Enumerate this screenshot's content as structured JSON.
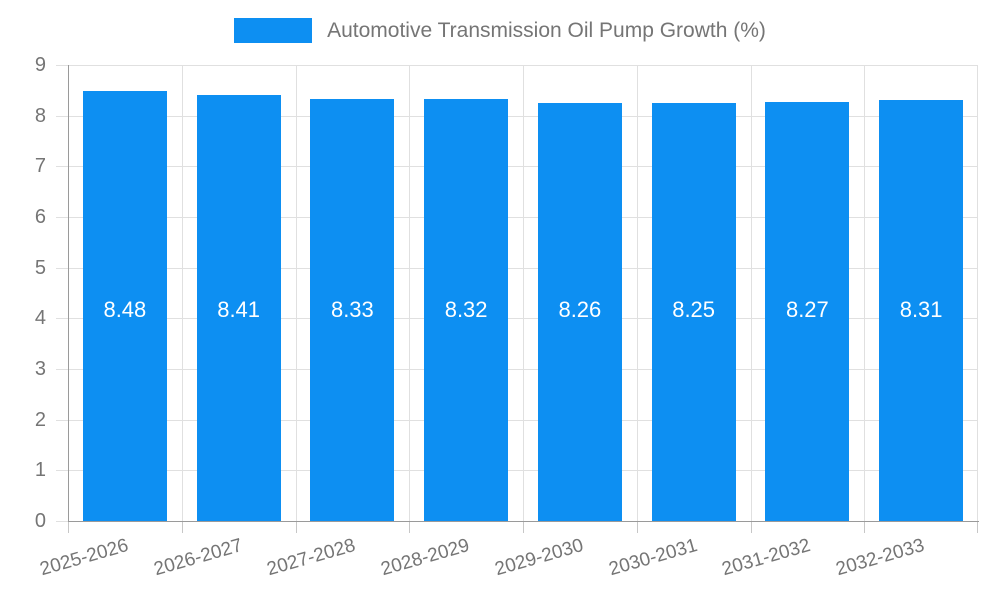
{
  "chart_data": {
    "type": "bar",
    "title": "Automotive Transmission Oil Pump Growth (%)",
    "legend": [
      "Automotive Transmission Oil Pump Growth (%)"
    ],
    "legend_position": "top",
    "categories": [
      "2025-2026",
      "2026-2027",
      "2027-2028",
      "2028-2029",
      "2029-2030",
      "2030-2031",
      "2031-2032",
      "2032-2033"
    ],
    "values": [
      8.48,
      8.41,
      8.33,
      8.32,
      8.26,
      8.25,
      8.27,
      8.31
    ],
    "value_labels": [
      "8.48",
      "8.41",
      "8.33",
      "8.32",
      "8.26",
      "8.25",
      "8.27",
      "8.31"
    ],
    "xlabel": "",
    "ylabel": "",
    "ylim": [
      0,
      9
    ],
    "y_ticks": [
      0,
      1,
      2,
      3,
      4,
      5,
      6,
      7,
      8,
      9
    ],
    "grid": true,
    "bar_color": "#0d8ff2",
    "value_label_color": "#ffffff",
    "text_color": "#757575",
    "grid_color": "#e0e0e0",
    "axis_color": "#9a9a9a"
  }
}
